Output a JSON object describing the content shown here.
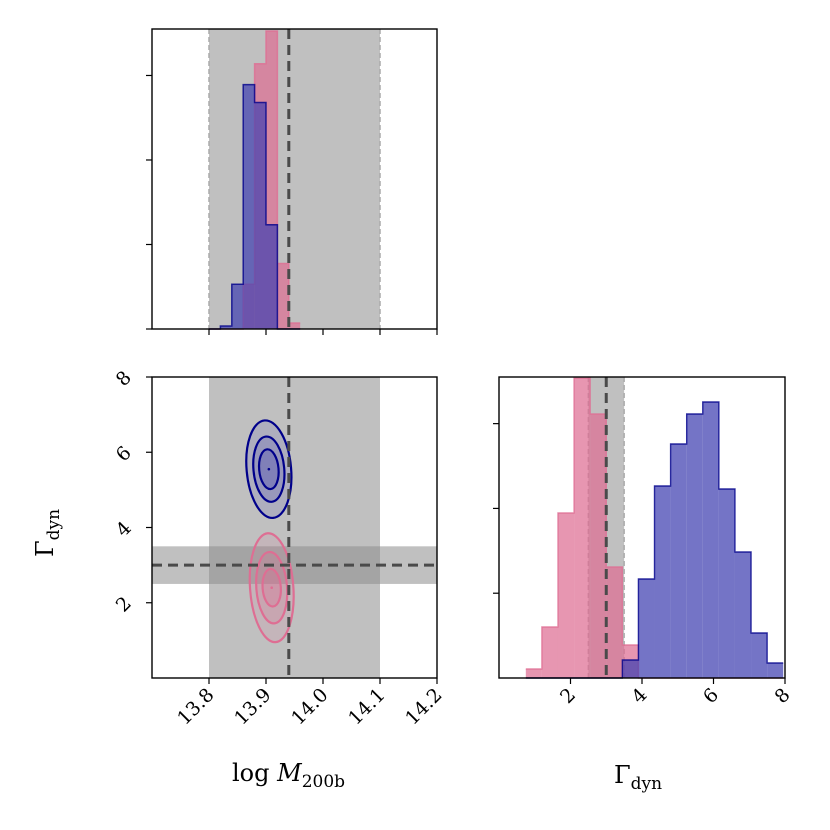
{
  "chart_data": {
    "type": "corner",
    "colors": {
      "pink": "#de6e93",
      "navy": "#00008b",
      "blue_fill": "#3f3fb0",
      "shade": "#8c8c8c",
      "truth_line": "#4a4a4a"
    },
    "parameters": [
      {
        "name": "log_M200b",
        "label_prefix": "log ",
        "label_main": "M",
        "label_sub": "200b",
        "range": [
          13.7,
          14.2
        ],
        "ticks": [
          "13.8",
          "13.9",
          "14.0",
          "14.1",
          "14.2"
        ],
        "tick_values": [
          13.8,
          13.9,
          14.0,
          14.1,
          14.2
        ],
        "prior_band": [
          13.8,
          14.1
        ],
        "truth": 13.94
      },
      {
        "name": "Gamma_dyn",
        "label_prefix": "",
        "label_main": "Γ",
        "label_sub": "dyn",
        "range": [
          0,
          8
        ],
        "ticks": [
          "2",
          "4",
          "6",
          "8"
        ],
        "tick_values": [
          2,
          4,
          6,
          8
        ],
        "prior_band": [
          2.5,
          3.5
        ],
        "truth": 3.0
      }
    ],
    "marginal_mass": {
      "bin_edges": [
        13.8,
        13.82,
        13.84,
        13.86,
        13.88,
        13.9,
        13.92,
        13.94,
        13.96
      ],
      "series": [
        {
          "name": "pink",
          "values": [
            0.0,
            0.0,
            0.0,
            0.15,
            0.89,
            1.0,
            0.22,
            0.02
          ]
        },
        {
          "name": "navy",
          "values": [
            0.0,
            0.01,
            0.15,
            0.82,
            0.76,
            0.35,
            0.0,
            0.0
          ]
        }
      ],
      "yticks_count": 4
    },
    "marginal_gamma": {
      "bin_edges": [
        0.75,
        1.2,
        1.65,
        2.1,
        2.55,
        3.0,
        3.45,
        3.9,
        4.35,
        4.8,
        5.25,
        5.7,
        6.15,
        6.6,
        7.05,
        7.5,
        7.95
      ],
      "series": [
        {
          "name": "pink",
          "values": [
            0.03,
            0.17,
            0.55,
            1.0,
            0.88,
            0.37,
            0.11,
            0.0,
            0.0,
            0.0,
            0.0,
            0.0,
            0.0,
            0.0,
            0.0,
            0.0
          ]
        },
        {
          "name": "navy",
          "values": [
            0.0,
            0.0,
            0.0,
            0.0,
            0.0,
            0.0,
            0.06,
            0.33,
            0.64,
            0.78,
            0.88,
            0.92,
            0.63,
            0.42,
            0.15,
            0.05
          ]
        }
      ],
      "yticks_count": 3
    },
    "joint": {
      "series": [
        {
          "name": "navy",
          "center": [
            13.905,
            5.55
          ],
          "levels": [
            {
              "dx": 0.039,
              "dy": 1.3
            },
            {
              "dx": 0.027,
              "dy": 0.87
            },
            {
              "dx": 0.017,
              "dy": 0.53
            }
          ],
          "tilt": 0.15
        },
        {
          "name": "pink",
          "center": [
            13.91,
            2.4
          ],
          "levels": [
            {
              "dx": 0.038,
              "dy": 1.45
            },
            {
              "dx": 0.027,
              "dy": 0.95
            },
            {
              "dx": 0.016,
              "dy": 0.5
            }
          ],
          "tilt": 0.12
        }
      ]
    }
  }
}
